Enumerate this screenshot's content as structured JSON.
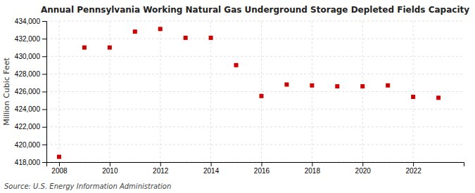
{
  "chart_data": {
    "type": "scatter",
    "title": "Annual Pennsylvania Working Natural Gas Underground Storage Depleted Fields Capacity",
    "ylabel": "Million Cubic Feet",
    "annotations": [
      "Source: U.S. Energy Information Administration"
    ],
    "x": [
      2008,
      2009,
      2010,
      2011,
      2012,
      2013,
      2014,
      2015,
      2016,
      2017,
      2018,
      2019,
      2020,
      2021,
      2022,
      2023
    ],
    "values": [
      418600,
      431000,
      431000,
      432800,
      433100,
      432100,
      432100,
      429000,
      425500,
      426800,
      426700,
      426600,
      426600,
      426700,
      425400,
      425300
    ],
    "color": "#cc0000",
    "marker": "square",
    "xlim": [
      2007.5,
      2024.0
    ],
    "xticks": [
      2008,
      2010,
      2012,
      2014,
      2016,
      2018,
      2020,
      2022
    ],
    "ylim": [
      418000,
      434000
    ],
    "yticks": [
      {
        "value": 418000,
        "label": "418,000"
      },
      {
        "value": 420000,
        "label": "420,000"
      },
      {
        "value": 422000,
        "label": "422,000"
      },
      {
        "value": 424000,
        "label": "424,000"
      },
      {
        "value": 426000,
        "label": "426,000"
      },
      {
        "value": 428000,
        "label": "428,000"
      },
      {
        "value": 430000,
        "label": "430,000"
      },
      {
        "value": 432000,
        "label": "432,000"
      },
      {
        "value": 434000,
        "label": "434,000"
      }
    ],
    "grid": true
  }
}
